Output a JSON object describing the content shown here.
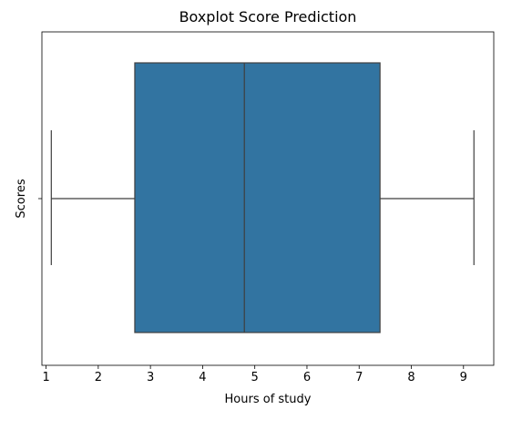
{
  "chart_data": {
    "type": "boxplot",
    "title": "Boxplot Score Prediction",
    "xlabel": "Hours of study",
    "ylabel": "Scores",
    "orientation": "horizontal",
    "xlim": [
      0.92,
      9.58
    ],
    "xticks": [
      1,
      2,
      3,
      4,
      5,
      6,
      7,
      8,
      9
    ],
    "box": {
      "min": 1.1,
      "q1": 2.7,
      "median": 4.8,
      "q3": 7.4,
      "max": 9.2
    },
    "grid": false,
    "legend": false,
    "box_color": "#3274a1",
    "line_color": "#3f3f3f"
  }
}
